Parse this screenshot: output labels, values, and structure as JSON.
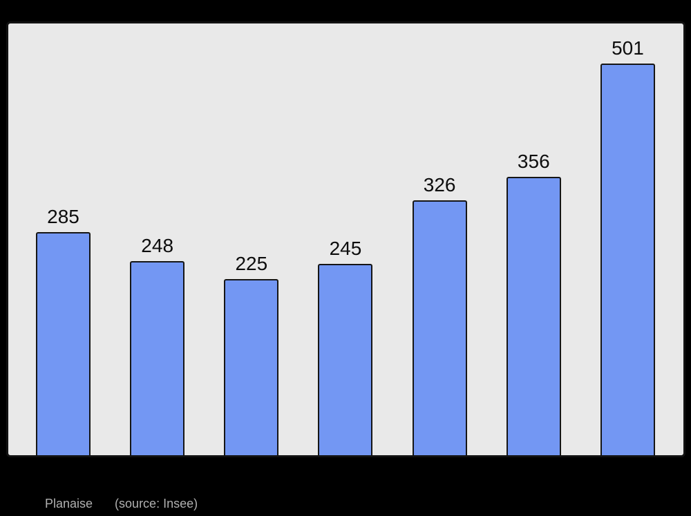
{
  "page": {
    "background": "#000000"
  },
  "chart_data": {
    "type": "bar",
    "values": [
      285,
      248,
      225,
      245,
      326,
      356,
      501
    ],
    "bar_value_labels": [
      "285",
      "248",
      "225",
      "245",
      "326",
      "356",
      "501"
    ],
    "title": "",
    "xlabel": "",
    "ylabel": "",
    "ylim": [
      0,
      552
    ],
    "x_tick_labels_visible": false,
    "y_axis_visible": false,
    "gridlines": false,
    "legend": "none",
    "bar_color": "#7397f3",
    "bar_border_color": "#151515",
    "value_label_color": "#0d0d0d",
    "panel_background": "#e9e9e9",
    "panel_border_color": "#121212"
  },
  "caption": {
    "name": "Planaise",
    "source": "(source: Insee)",
    "color": "#b0b0b0"
  }
}
